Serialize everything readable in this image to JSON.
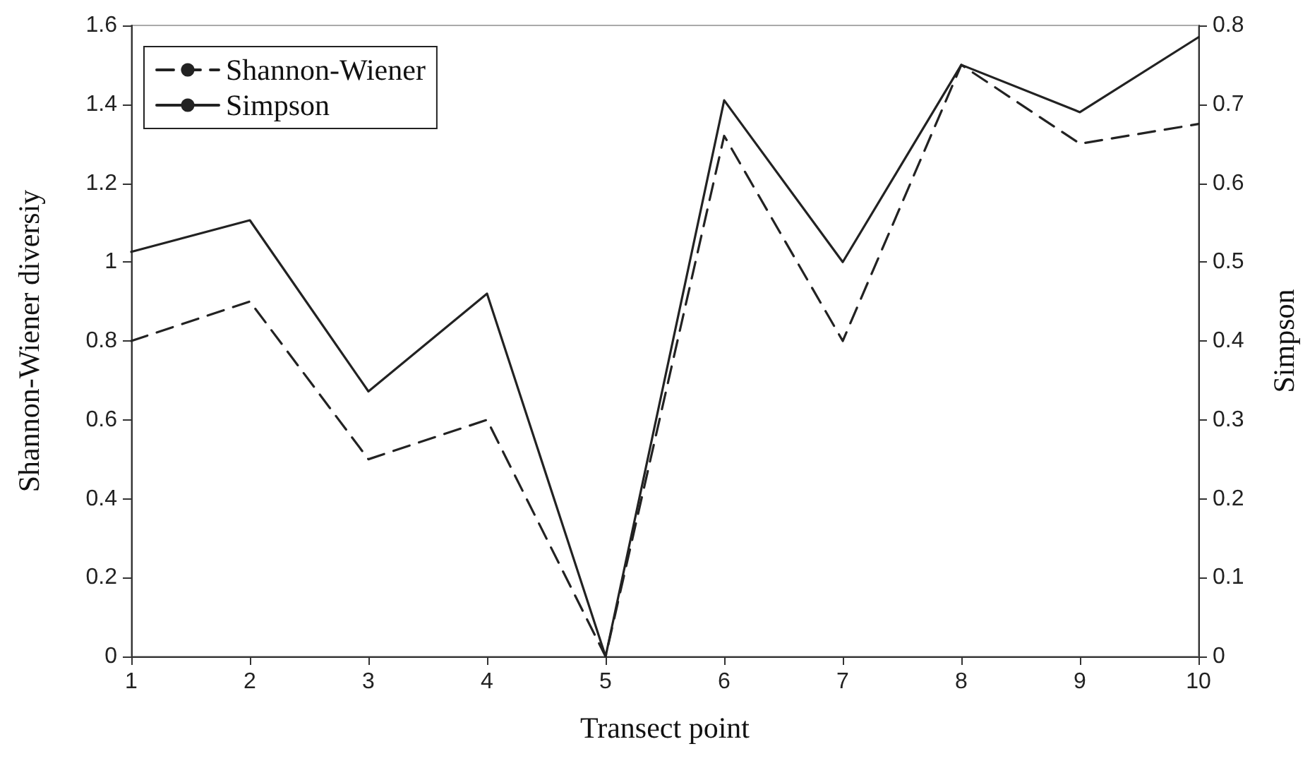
{
  "chart_data": {
    "type": "line",
    "xlabel": "Transect point",
    "ylabel": "Shannon-Wiener diversiy",
    "y2label": "Simpson",
    "x": [
      1,
      2,
      3,
      4,
      5,
      6,
      7,
      8,
      9,
      10
    ],
    "xlim": [
      1,
      10
    ],
    "xticks": [
      1,
      2,
      3,
      4,
      5,
      6,
      7,
      8,
      9,
      10
    ],
    "ylim": [
      0,
      1.6
    ],
    "yticks": [
      0,
      0.2,
      0.4,
      0.6,
      0.8,
      1,
      1.2,
      1.4,
      1.6
    ],
    "y2lim": [
      0,
      0.8
    ],
    "y2ticks": [
      0,
      0.1,
      0.2,
      0.3,
      0.4,
      0.5,
      0.6,
      0.7,
      0.8
    ],
    "series": [
      {
        "name": "Shannon-Wiener",
        "color": "#222222",
        "line_style": "dashed",
        "values": [
          0.8,
          0.9,
          0.5,
          0.6,
          0,
          1.32,
          0.8,
          1.5,
          1.3,
          1.35
        ]
      },
      {
        "name": "Simpson",
        "color": "#222222",
        "line_style": "solid",
        "axis": "y2",
        "values": [
          0.513,
          0.553,
          0.336,
          0.46,
          0,
          0.705,
          0.5,
          0.75,
          0.69,
          0.785
        ]
      }
    ],
    "marker": "none",
    "grid": false,
    "legend": "top left"
  }
}
